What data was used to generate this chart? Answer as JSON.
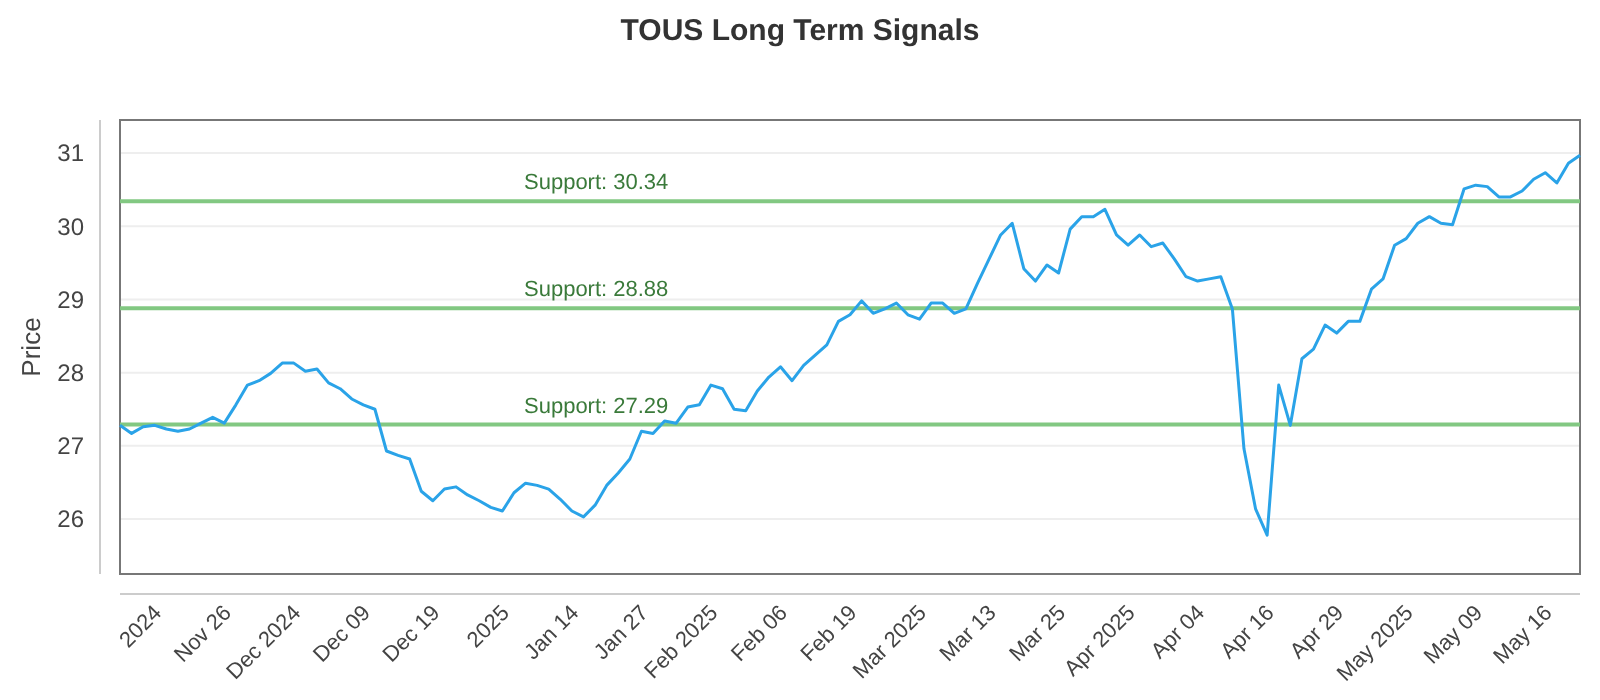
{
  "chart_data": {
    "type": "line",
    "title": "TOUS Long Term Signals",
    "ylabel": "Price",
    "categories": [
      null,
      null,
      null,
      "2024",
      null,
      null,
      null,
      null,
      null,
      "Nov 26",
      null,
      null,
      null,
      null,
      null,
      "Dec 2024",
      null,
      null,
      null,
      null,
      null,
      "Dec 09",
      null,
      null,
      null,
      null,
      null,
      "Dec 19",
      null,
      null,
      null,
      null,
      null,
      "2025",
      null,
      null,
      null,
      null,
      null,
      "Jan 14",
      null,
      null,
      null,
      null,
      null,
      "Jan 27",
      null,
      null,
      null,
      null,
      null,
      "Feb 2025",
      null,
      null,
      null,
      null,
      null,
      "Feb 06",
      null,
      null,
      null,
      null,
      null,
      "Feb 19",
      null,
      null,
      null,
      null,
      null,
      "Mar 2025",
      null,
      null,
      null,
      null,
      null,
      "Mar 13",
      null,
      null,
      null,
      null,
      null,
      "Mar 25",
      null,
      null,
      null,
      null,
      null,
      "Apr 2025",
      null,
      null,
      null,
      null,
      null,
      "Apr 04",
      null,
      null,
      null,
      null,
      null,
      "Apr 16",
      null,
      null,
      null,
      null,
      null,
      "Apr 29",
      null,
      null,
      null,
      null,
      null,
      "May 2025",
      null,
      null,
      null,
      null,
      null,
      "May 09",
      null,
      null,
      null,
      null,
      null,
      "May 16",
      null,
      null,
      null
    ],
    "series": [
      {
        "color": "#2aa3e8",
        "values": [
          27.28,
          27.17,
          27.26,
          27.28,
          27.23,
          27.2,
          27.23,
          27.31,
          27.39,
          27.31,
          27.56,
          27.83,
          27.89,
          27.99,
          28.13,
          28.13,
          28.02,
          28.05,
          27.86,
          27.78,
          27.64,
          27.56,
          27.5,
          26.93,
          26.87,
          26.82,
          26.38,
          26.25,
          26.41,
          26.44,
          26.33,
          26.25,
          26.16,
          26.11,
          26.36,
          26.49,
          26.46,
          26.41,
          26.27,
          26.11,
          26.03,
          26.19,
          26.46,
          26.63,
          26.82,
          27.2,
          27.17,
          27.34,
          27.31,
          27.53,
          27.56,
          27.83,
          27.78,
          27.5,
          27.48,
          27.75,
          27.94,
          28.08,
          27.89,
          28.1,
          28.24,
          28.38,
          28.7,
          28.79,
          28.98,
          28.81,
          28.87,
          28.95,
          28.79,
          28.73,
          28.95,
          28.95,
          28.81,
          28.87,
          29.22,
          29.55,
          29.88,
          30.04,
          29.42,
          29.25,
          29.47,
          29.36,
          29.96,
          30.13,
          30.13,
          30.23,
          29.88,
          29.74,
          29.88,
          29.72,
          29.77,
          29.55,
          29.31,
          29.25,
          29.28,
          29.31,
          28.87,
          26.96,
          26.14,
          25.78,
          27.83,
          27.28,
          28.19,
          28.32,
          28.65,
          28.54,
          28.7,
          28.7,
          29.14,
          29.28,
          29.74,
          29.83,
          30.04,
          30.13,
          30.04,
          30.02,
          30.51,
          30.56,
          30.54,
          30.4,
          30.4,
          30.48,
          30.64,
          30.73,
          30.59,
          30.86,
          30.97
        ]
      }
    ],
    "ylim": [
      25.25,
      31.45
    ],
    "yticks": [
      26,
      27,
      28,
      29,
      30,
      31
    ],
    "grid": "y",
    "marker": "none",
    "line_style": "solid",
    "ref_lines": [
      {
        "axis": "y",
        "value": 30.34,
        "label": "Support: 30.34",
        "color": "#82c882"
      },
      {
        "axis": "y",
        "value": 28.88,
        "label": "Support: 28.88",
        "color": "#82c882"
      },
      {
        "axis": "y",
        "value": 27.29,
        "label": "Support: 27.29",
        "color": "#82c882"
      }
    ]
  }
}
